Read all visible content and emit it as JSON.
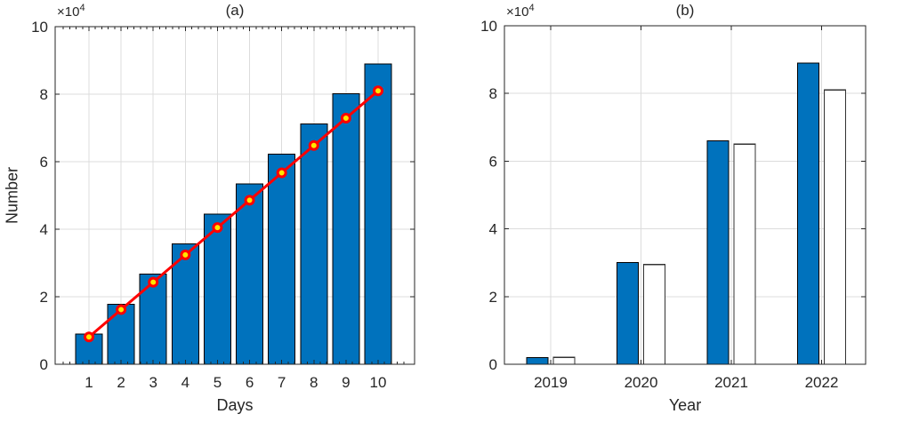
{
  "chart_data": [
    {
      "id": "a",
      "type": "bar",
      "title": "(a)",
      "xlabel": "Days",
      "ylabel": "Number",
      "y_exponent": {
        "base": "×10",
        "sup": "4"
      },
      "categories": [
        "1",
        "2",
        "3",
        "4",
        "5",
        "6",
        "7",
        "8",
        "9",
        "10"
      ],
      "series": [
        {
          "name": "daily-number-bars",
          "type": "bar",
          "color": "#0072BD",
          "edge": "#000000",
          "values": [
            8900,
            17800,
            26700,
            35600,
            44500,
            53400,
            62300,
            71200,
            80100,
            89000
          ]
        },
        {
          "name": "trend-line",
          "type": "line",
          "color": "#FF0000",
          "marker": "circle",
          "marker_face": "#FFE600",
          "values": [
            8100,
            16200,
            24300,
            32400,
            40500,
            48600,
            56700,
            64800,
            72900,
            81000
          ]
        }
      ],
      "ylim": [
        0,
        100000
      ],
      "yticks": {
        "values": [
          0,
          20000,
          40000,
          60000,
          80000,
          100000
        ],
        "labels": [
          "0",
          "2",
          "4",
          "6",
          "8",
          "10"
        ]
      },
      "grid": true,
      "legend": null
    },
    {
      "id": "b",
      "type": "bar",
      "title": "(b)",
      "xlabel": "Year",
      "ylabel": "",
      "y_exponent": {
        "base": "×10",
        "sup": "4"
      },
      "categories": [
        "2019",
        "2020",
        "2021",
        "2022"
      ],
      "series": [
        {
          "name": "blue-bars",
          "type": "bar",
          "color": "#0072BD",
          "edge": "#000000",
          "values": [
            2000,
            30000,
            66000,
            89000
          ]
        },
        {
          "name": "white-bars",
          "type": "bar",
          "color": "#FFFFFF",
          "edge": "#333333",
          "values": [
            2000,
            29500,
            65000,
            81000
          ]
        }
      ],
      "ylim": [
        0,
        100000
      ],
      "yticks": {
        "values": [
          0,
          20000,
          40000,
          60000,
          80000,
          100000
        ],
        "labels": [
          "0",
          "2",
          "4",
          "6",
          "8",
          "10"
        ]
      },
      "grid": true,
      "legend": null
    }
  ],
  "style_colors": {
    "grid": "#dcdcdc",
    "axis": "#262626",
    "text": "#262626"
  }
}
